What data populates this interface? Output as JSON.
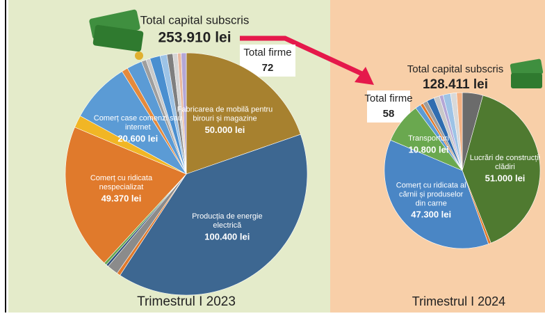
{
  "chart_data": [
    {
      "type": "pie",
      "title": "Trimestrul I 2023",
      "total_label": "Total capital subscris",
      "total_capital": 253910,
      "total_capital_label": "253.910 lei",
      "firms_label": "Total firme",
      "firms": 72,
      "categories": [
        "Fabricarea de mobilă pentru birouri și magazine",
        "Producția de energie electrică",
        null,
        null,
        null,
        null,
        "Comerț cu ridicata nespecializat",
        null,
        "Comerț case comenzi sau internet",
        null,
        null,
        null,
        null,
        null,
        null,
        null,
        null,
        null,
        null
      ],
      "values": [
        50000,
        100400,
        1200,
        3800,
        800,
        900,
        49370,
        4200,
        20600,
        2100,
        5200,
        1600,
        1400,
        3500,
        2300,
        2000,
        1600,
        1200,
        1740
      ],
      "value_labels": [
        "50.000 lei",
        "100.400 lei",
        null,
        null,
        null,
        null,
        "49.370 lei",
        null,
        "20.600 lei",
        null,
        null,
        null,
        null,
        null,
        null,
        null,
        null,
        null,
        null
      ],
      "colors": [
        "#a7812f",
        "#3d6791",
        "#e07a2c",
        "#8b8b8b",
        "#2f4e7a",
        "#6aa84f",
        "#e07a2c",
        "#f1b625",
        "#5b9bd5",
        "#e58a3c",
        "#5b9bd5",
        "#9e9e9e",
        "#c9c9c9",
        "#4a8fd0",
        "#9dc3e6",
        "#7f7f7f",
        "#d5d5d5",
        "#e9b9a0",
        "#b4a7d6"
      ]
    },
    {
      "type": "pie",
      "title": "Trimestrul I 2024",
      "total_label": "Total capital subscris",
      "total_capital": 128411,
      "total_capital_label": "128.411 lei",
      "firms_label": "Total firme",
      "firms": 58,
      "categories": [
        null,
        "Lucrări de construcții clădiri",
        null,
        "Comerț cu ridicata al cărnii și produselor din carne",
        "Transporturi",
        null,
        null,
        null,
        null,
        null,
        null,
        null,
        null,
        null
      ],
      "values": [
        5500,
        51000,
        700,
        47300,
        10800,
        1500,
        800,
        1200,
        2000,
        1500,
        1000,
        2000,
        1600,
        1511
      ],
      "value_labels": [
        null,
        "51.000 lei",
        null,
        "47.300 lei",
        "10.800 lei",
        null,
        null,
        null,
        null,
        null,
        null,
        null,
        null,
        null
      ],
      "colors": [
        "#6b6b6b",
        "#4f7a30",
        "#e07a2c",
        "#4a86c5",
        "#6aa84f",
        "#5b9bd5",
        "#e07a2c",
        "#9e9e9e",
        "#2f6db0",
        "#c9c9c9",
        "#b4a7d6",
        "#9dc3e6",
        "#d9d9d9",
        "#f4b183"
      ]
    }
  ]
}
